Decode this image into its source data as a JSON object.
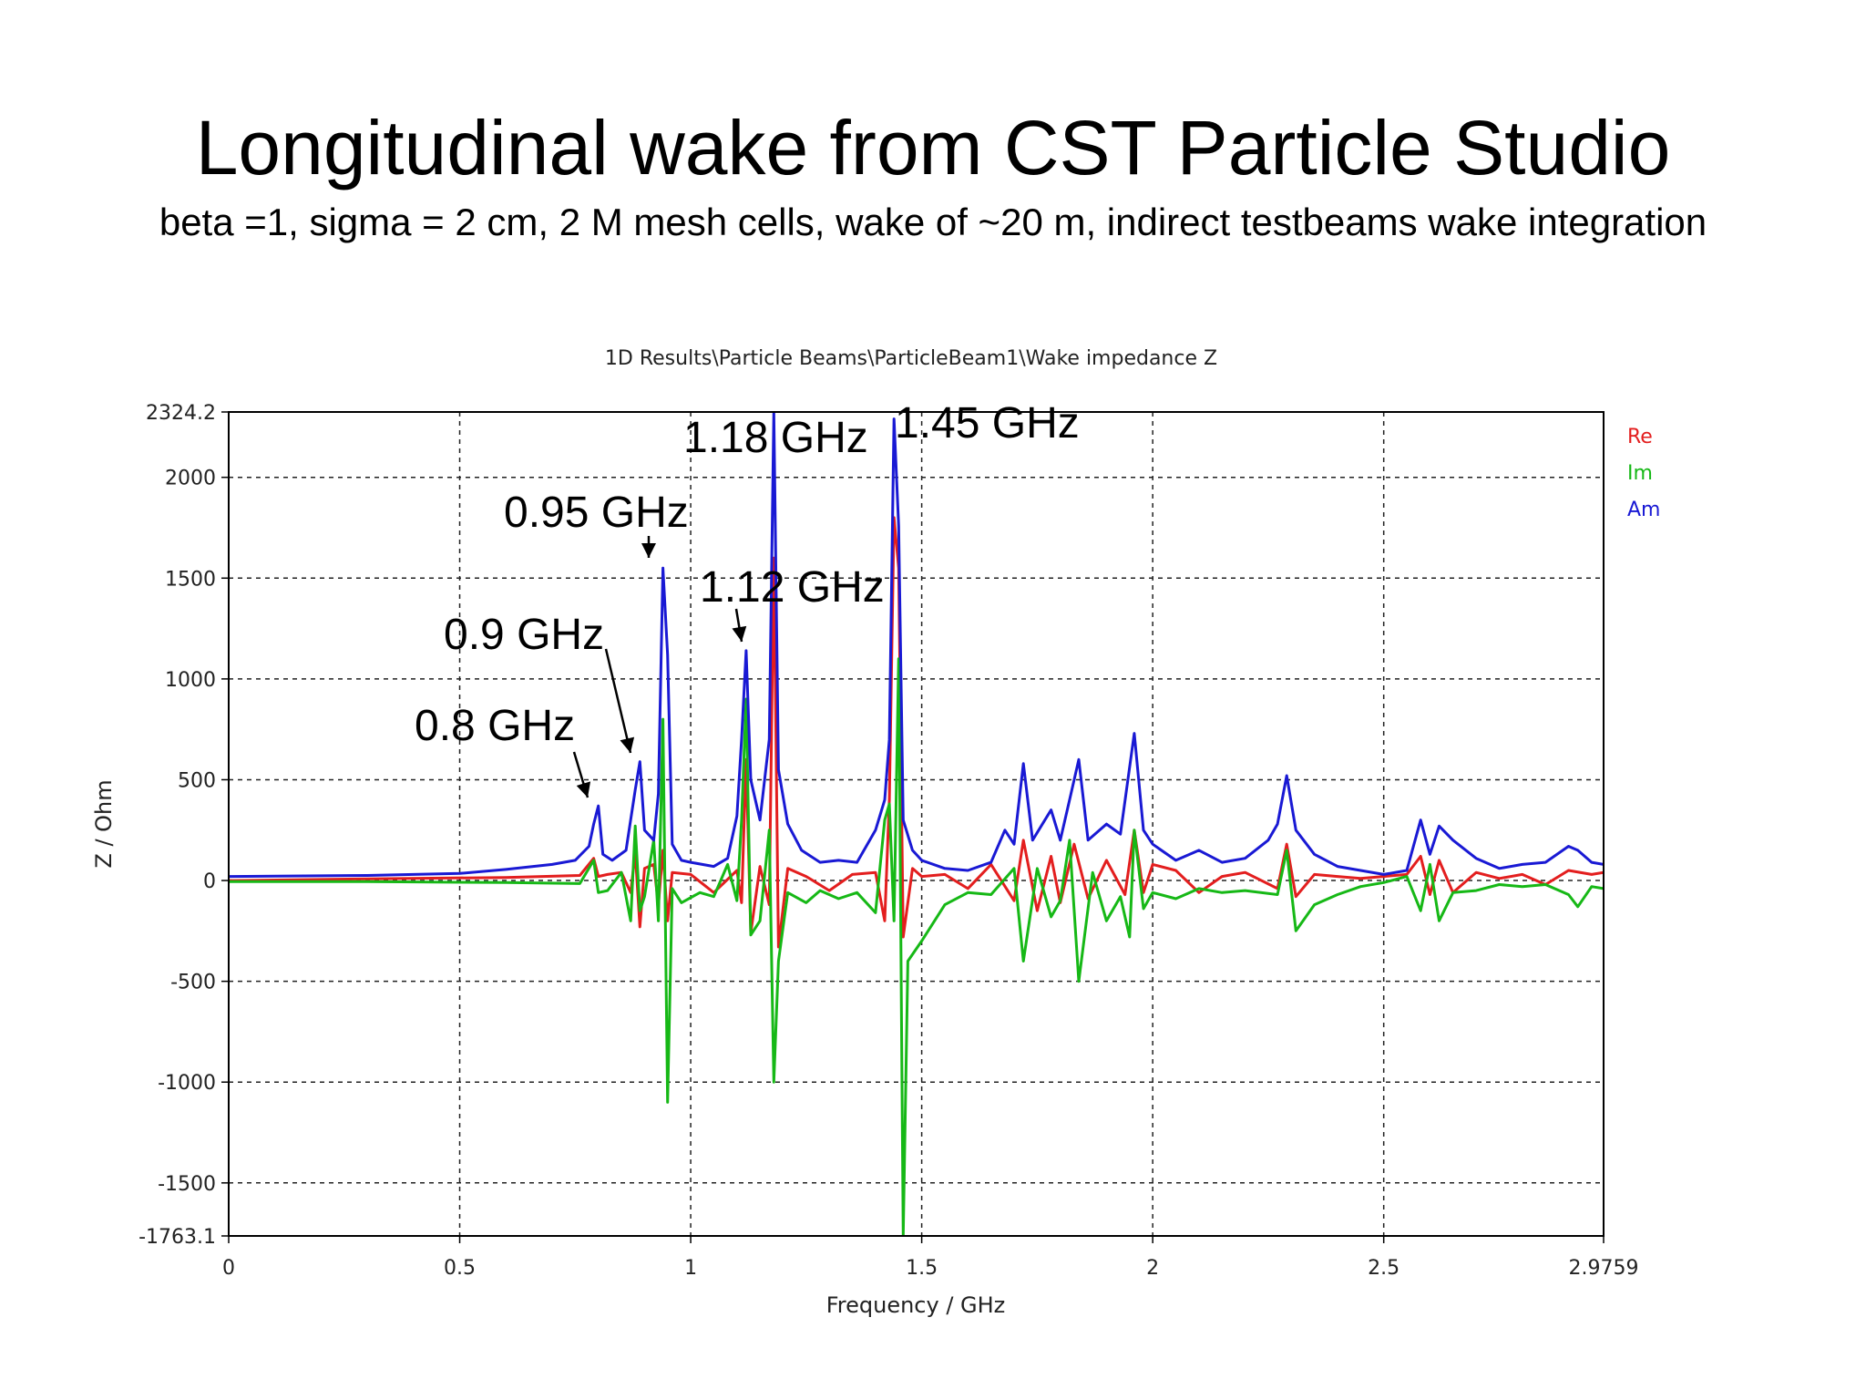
{
  "slide": {
    "title": "Longitudinal wake from CST Particle Studio",
    "subtitle": "beta =1, sigma = 2 cm, 2 M mesh cells, wake of ~20 m, indirect testbeams wake integration"
  },
  "chart_data": {
    "type": "line",
    "title": "1D Results\\Particle Beams\\ParticleBeam1\\Wake impedance Z",
    "xlabel": "Frequency / GHz",
    "ylabel": "Z / Ohm",
    "xlim": [
      0,
      2.9759
    ],
    "ylim": [
      -1763.1,
      2324.2
    ],
    "x_ticks": [
      {
        "value": 0,
        "label": "0"
      },
      {
        "value": 0.5,
        "label": "0.5"
      },
      {
        "value": 1,
        "label": "1"
      },
      {
        "value": 1.5,
        "label": "1.5"
      },
      {
        "value": 2,
        "label": "2"
      },
      {
        "value": 2.5,
        "label": "2.5"
      },
      {
        "value": 2.9759,
        "label": "2.9759"
      }
    ],
    "y_ticks": [
      {
        "value": -1763.1,
        "label": "-1763.1"
      },
      {
        "value": -1500,
        "label": "-1500"
      },
      {
        "value": -1000,
        "label": "-1000"
      },
      {
        "value": -500,
        "label": "-500"
      },
      {
        "value": 0,
        "label": "0"
      },
      {
        "value": 500,
        "label": "500"
      },
      {
        "value": 1000,
        "label": "1000"
      },
      {
        "value": 1500,
        "label": "1500"
      },
      {
        "value": 2000,
        "label": "2000"
      },
      {
        "value": 2324.2,
        "label": "2324.2"
      }
    ],
    "grid": true,
    "grid_style": "dashed",
    "legend_position": "right",
    "series": [
      {
        "name": "Re",
        "color": "#e31e1e",
        "points": [
          [
            0,
            0
          ],
          [
            0.3,
            8
          ],
          [
            0.6,
            15
          ],
          [
            0.76,
            25
          ],
          [
            0.79,
            110
          ],
          [
            0.8,
            20
          ],
          [
            0.82,
            30
          ],
          [
            0.85,
            40
          ],
          [
            0.87,
            -60
          ],
          [
            0.88,
            140
          ],
          [
            0.89,
            -230
          ],
          [
            0.9,
            60
          ],
          [
            0.92,
            80
          ],
          [
            0.93,
            -120
          ],
          [
            0.94,
            150
          ],
          [
            0.95,
            -200
          ],
          [
            0.96,
            40
          ],
          [
            1.0,
            30
          ],
          [
            1.05,
            -60
          ],
          [
            1.1,
            50
          ],
          [
            1.11,
            -110
          ],
          [
            1.12,
            600
          ],
          [
            1.13,
            -260
          ],
          [
            1.15,
            70
          ],
          [
            1.17,
            -120
          ],
          [
            1.18,
            1600
          ],
          [
            1.19,
            -330
          ],
          [
            1.21,
            60
          ],
          [
            1.25,
            20
          ],
          [
            1.3,
            -50
          ],
          [
            1.35,
            30
          ],
          [
            1.4,
            40
          ],
          [
            1.42,
            -200
          ],
          [
            1.43,
            400
          ],
          [
            1.44,
            1800
          ],
          [
            1.45,
            1550
          ],
          [
            1.46,
            -280
          ],
          [
            1.48,
            60
          ],
          [
            1.5,
            20
          ],
          [
            1.55,
            30
          ],
          [
            1.6,
            -40
          ],
          [
            1.65,
            80
          ],
          [
            1.7,
            -100
          ],
          [
            1.72,
            200
          ],
          [
            1.75,
            -150
          ],
          [
            1.78,
            120
          ],
          [
            1.8,
            -110
          ],
          [
            1.83,
            180
          ],
          [
            1.86,
            -90
          ],
          [
            1.9,
            100
          ],
          [
            1.94,
            -70
          ],
          [
            1.96,
            250
          ],
          [
            1.98,
            -60
          ],
          [
            2.0,
            80
          ],
          [
            2.05,
            50
          ],
          [
            2.1,
            -60
          ],
          [
            2.15,
            20
          ],
          [
            2.2,
            40
          ],
          [
            2.27,
            -40
          ],
          [
            2.29,
            180
          ],
          [
            2.31,
            -80
          ],
          [
            2.35,
            30
          ],
          [
            2.4,
            20
          ],
          [
            2.45,
            10
          ],
          [
            2.5,
            20
          ],
          [
            2.55,
            30
          ],
          [
            2.58,
            120
          ],
          [
            2.6,
            -70
          ],
          [
            2.62,
            100
          ],
          [
            2.65,
            -60
          ],
          [
            2.7,
            40
          ],
          [
            2.75,
            10
          ],
          [
            2.8,
            30
          ],
          [
            2.85,
            -20
          ],
          [
            2.9,
            50
          ],
          [
            2.95,
            30
          ],
          [
            2.9759,
            40
          ]
        ]
      },
      {
        "name": "Im",
        "color": "#16b816",
        "points": [
          [
            0,
            -5
          ],
          [
            0.3,
            -5
          ],
          [
            0.6,
            -10
          ],
          [
            0.76,
            -15
          ],
          [
            0.79,
            100
          ],
          [
            0.8,
            -60
          ],
          [
            0.82,
            -50
          ],
          [
            0.85,
            40
          ],
          [
            0.87,
            -200
          ],
          [
            0.88,
            270
          ],
          [
            0.89,
            -150
          ],
          [
            0.9,
            -80
          ],
          [
            0.92,
            200
          ],
          [
            0.93,
            -200
          ],
          [
            0.94,
            800
          ],
          [
            0.95,
            -1100
          ],
          [
            0.96,
            -40
          ],
          [
            0.98,
            -110
          ],
          [
            1.02,
            -60
          ],
          [
            1.05,
            -80
          ],
          [
            1.08,
            80
          ],
          [
            1.1,
            -100
          ],
          [
            1.11,
            300
          ],
          [
            1.12,
            900
          ],
          [
            1.13,
            -270
          ],
          [
            1.15,
            -200
          ],
          [
            1.17,
            250
          ],
          [
            1.18,
            -1000
          ],
          [
            1.19,
            -400
          ],
          [
            1.21,
            -60
          ],
          [
            1.25,
            -110
          ],
          [
            1.28,
            -50
          ],
          [
            1.32,
            -90
          ],
          [
            1.36,
            -60
          ],
          [
            1.4,
            -160
          ],
          [
            1.42,
            300
          ],
          [
            1.43,
            380
          ],
          [
            1.44,
            -200
          ],
          [
            1.45,
            1100
          ],
          [
            1.46,
            -1763
          ],
          [
            1.47,
            -400
          ],
          [
            1.5,
            -300
          ],
          [
            1.55,
            -120
          ],
          [
            1.6,
            -60
          ],
          [
            1.65,
            -70
          ],
          [
            1.7,
            60
          ],
          [
            1.72,
            -400
          ],
          [
            1.75,
            60
          ],
          [
            1.78,
            -180
          ],
          [
            1.8,
            -100
          ],
          [
            1.82,
            200
          ],
          [
            1.84,
            -500
          ],
          [
            1.87,
            40
          ],
          [
            1.9,
            -200
          ],
          [
            1.93,
            -80
          ],
          [
            1.95,
            -280
          ],
          [
            1.96,
            250
          ],
          [
            1.98,
            -140
          ],
          [
            2.0,
            -60
          ],
          [
            2.05,
            -90
          ],
          [
            2.1,
            -40
          ],
          [
            2.15,
            -60
          ],
          [
            2.2,
            -50
          ],
          [
            2.27,
            -70
          ],
          [
            2.29,
            150
          ],
          [
            2.31,
            -250
          ],
          [
            2.35,
            -120
          ],
          [
            2.4,
            -70
          ],
          [
            2.45,
            -30
          ],
          [
            2.5,
            -10
          ],
          [
            2.55,
            20
          ],
          [
            2.58,
            -150
          ],
          [
            2.6,
            80
          ],
          [
            2.62,
            -200
          ],
          [
            2.65,
            -60
          ],
          [
            2.7,
            -50
          ],
          [
            2.75,
            -20
          ],
          [
            2.8,
            -30
          ],
          [
            2.85,
            -20
          ],
          [
            2.9,
            -70
          ],
          [
            2.92,
            -130
          ],
          [
            2.95,
            -30
          ],
          [
            2.9759,
            -40
          ]
        ]
      },
      {
        "name": "Am",
        "color": "#1919d4",
        "points": [
          [
            0,
            20
          ],
          [
            0.3,
            25
          ],
          [
            0.5,
            35
          ],
          [
            0.6,
            55
          ],
          [
            0.7,
            80
          ],
          [
            0.75,
            100
          ],
          [
            0.78,
            170
          ],
          [
            0.79,
            280
          ],
          [
            0.8,
            370
          ],
          [
            0.81,
            130
          ],
          [
            0.83,
            100
          ],
          [
            0.86,
            150
          ],
          [
            0.88,
            450
          ],
          [
            0.89,
            590
          ],
          [
            0.9,
            250
          ],
          [
            0.92,
            200
          ],
          [
            0.93,
            430
          ],
          [
            0.94,
            1550
          ],
          [
            0.95,
            1120
          ],
          [
            0.96,
            180
          ],
          [
            0.98,
            100
          ],
          [
            1.0,
            90
          ],
          [
            1.05,
            70
          ],
          [
            1.08,
            110
          ],
          [
            1.1,
            320
          ],
          [
            1.11,
            700
          ],
          [
            1.12,
            1140
          ],
          [
            1.13,
            500
          ],
          [
            1.15,
            300
          ],
          [
            1.17,
            700
          ],
          [
            1.18,
            2324
          ],
          [
            1.19,
            550
          ],
          [
            1.21,
            280
          ],
          [
            1.24,
            150
          ],
          [
            1.28,
            90
          ],
          [
            1.32,
            100
          ],
          [
            1.36,
            90
          ],
          [
            1.4,
            250
          ],
          [
            1.42,
            400
          ],
          [
            1.43,
            700
          ],
          [
            1.44,
            2290
          ],
          [
            1.45,
            1760
          ],
          [
            1.46,
            300
          ],
          [
            1.48,
            150
          ],
          [
            1.5,
            100
          ],
          [
            1.55,
            60
          ],
          [
            1.6,
            50
          ],
          [
            1.65,
            90
          ],
          [
            1.68,
            250
          ],
          [
            1.7,
            180
          ],
          [
            1.72,
            580
          ],
          [
            1.74,
            200
          ],
          [
            1.78,
            350
          ],
          [
            1.8,
            200
          ],
          [
            1.82,
            400
          ],
          [
            1.84,
            600
          ],
          [
            1.86,
            200
          ],
          [
            1.9,
            280
          ],
          [
            1.93,
            230
          ],
          [
            1.96,
            730
          ],
          [
            1.98,
            250
          ],
          [
            2.0,
            180
          ],
          [
            2.05,
            100
          ],
          [
            2.1,
            150
          ],
          [
            2.15,
            90
          ],
          [
            2.2,
            110
          ],
          [
            2.25,
            200
          ],
          [
            2.27,
            280
          ],
          [
            2.29,
            520
          ],
          [
            2.31,
            250
          ],
          [
            2.35,
            130
          ],
          [
            2.4,
            70
          ],
          [
            2.45,
            50
          ],
          [
            2.5,
            30
          ],
          [
            2.55,
            50
          ],
          [
            2.58,
            300
          ],
          [
            2.6,
            130
          ],
          [
            2.62,
            270
          ],
          [
            2.65,
            200
          ],
          [
            2.7,
            110
          ],
          [
            2.75,
            60
          ],
          [
            2.8,
            80
          ],
          [
            2.85,
            90
          ],
          [
            2.9,
            170
          ],
          [
            2.92,
            150
          ],
          [
            2.95,
            90
          ],
          [
            2.9759,
            80
          ]
        ]
      }
    ],
    "annotations": [
      {
        "text": "0.8 GHz",
        "freq": 0.8
      },
      {
        "text": "0.9 GHz",
        "freq": 0.9
      },
      {
        "text": "0.95 GHz",
        "freq": 0.95
      },
      {
        "text": "1.12 GHz",
        "freq": 1.12
      },
      {
        "text": "1.18 GHz",
        "freq": 1.18
      },
      {
        "text": "1.45 GHz",
        "freq": 1.45
      }
    ]
  }
}
